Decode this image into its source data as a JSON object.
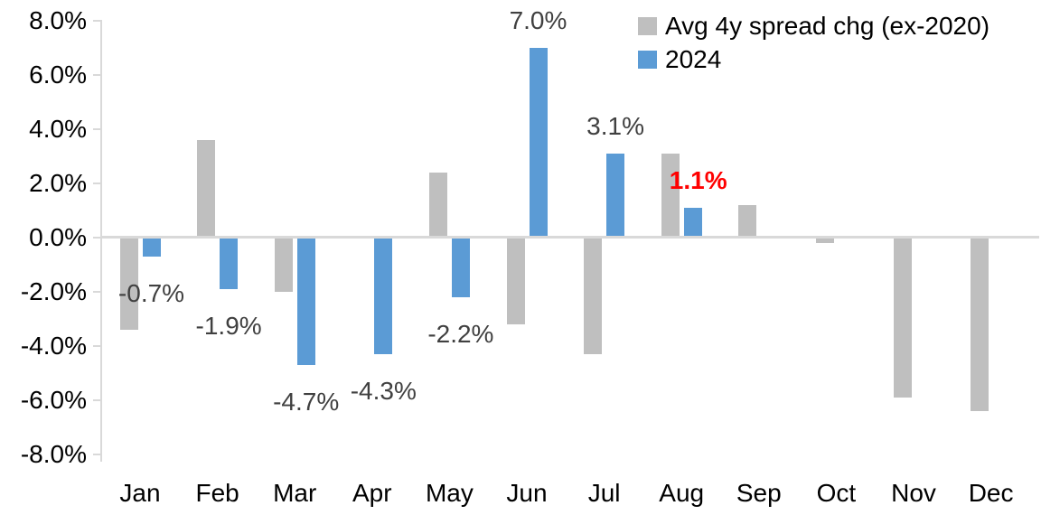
{
  "chart_data": {
    "type": "bar",
    "title": "",
    "categories": [
      "Jan",
      "Feb",
      "Mar",
      "Apr",
      "May",
      "Jun",
      "Jul",
      "Aug",
      "Sep",
      "Oct",
      "Nov",
      "Dec"
    ],
    "series": [
      {
        "name": "Avg 4y spread chg (ex-2020)",
        "color": "#BFBFBF",
        "values": [
          -3.4,
          3.6,
          -2.0,
          0.0,
          2.4,
          -3.2,
          -4.3,
          3.1,
          1.2,
          -0.2,
          -5.9,
          -6.4
        ]
      },
      {
        "name": "2024",
        "color": "#5B9BD5",
        "values": [
          -0.7,
          -1.9,
          -4.7,
          -4.3,
          -2.2,
          7.0,
          3.1,
          1.1,
          null,
          null,
          null,
          null
        ],
        "data_labels": [
          "-0.7%",
          "-1.9%",
          "-4.7%",
          "-4.3%",
          "-2.2%",
          "7.0%",
          "3.1%",
          "1.1%",
          null,
          null,
          null,
          null
        ],
        "highlight_label_index": 7
      }
    ],
    "ylim": [
      -8,
      8
    ],
    "y_tick_step": 2,
    "y_tick_labels": [
      "8.0%",
      "6.0%",
      "4.0%",
      "2.0%",
      "0.0%",
      "-2.0%",
      "-4.0%",
      "-6.0%",
      "-8.0%"
    ],
    "grid": false,
    "legend_position": "top-right"
  },
  "legend": {
    "items": [
      {
        "label": "Avg 4y spread chg (ex-2020)",
        "color": "#BFBFBF",
        "icon": "gray-square-icon"
      },
      {
        "label": "2024",
        "color": "#5B9BD5",
        "icon": "blue-square-icon"
      }
    ]
  },
  "colors": {
    "series_avg": "#BFBFBF",
    "series_2024": "#5B9BD5",
    "data_label": "#404040",
    "highlight_label": "#FF0000",
    "axis_line": "#D9D9D9",
    "axis_text": "#000000",
    "background": "#FFFFFF"
  }
}
